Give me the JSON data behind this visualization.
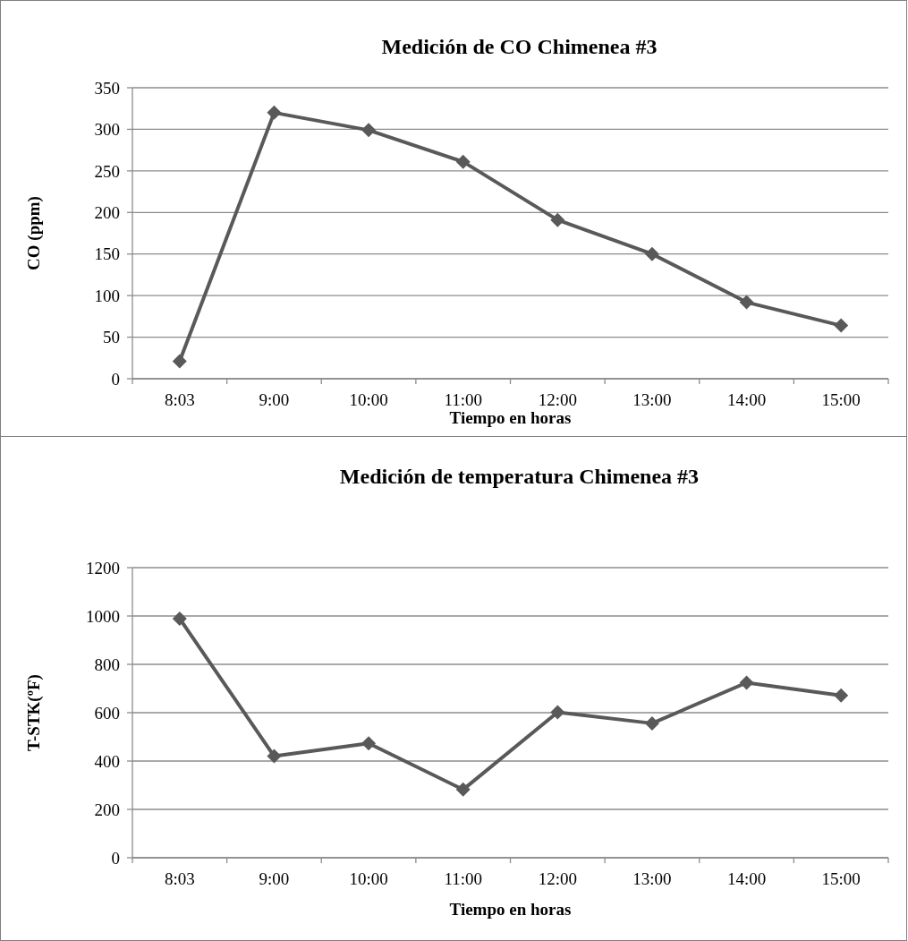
{
  "chart_data": [
    {
      "type": "line",
      "title": "Medición de CO Chimenea #3",
      "xlabel": "Tiempo en horas",
      "ylabel": "CO (ppm)",
      "categories": [
        "8:03",
        "9:00",
        "10:00",
        "11:00",
        "12:00",
        "13:00",
        "14:00",
        "15:00"
      ],
      "series": [
        {
          "color": "#595959",
          "values": [
            21,
            320,
            299,
            261,
            191,
            150,
            92,
            64
          ]
        }
      ],
      "ylim": [
        0,
        350
      ],
      "yticks": [
        0,
        50,
        100,
        150,
        200,
        250,
        300,
        350
      ],
      "grid": "y",
      "marker": "diamond",
      "line_style": "solid"
    },
    {
      "type": "line",
      "title": "Medición de temperatura Chimenea #3",
      "xlabel": "Tiempo en horas",
      "ylabel": "T-STK(ºF)",
      "categories": [
        "8:03",
        "9:00",
        "10:00",
        "11:00",
        "12:00",
        "13:00",
        "14:00",
        "15:00"
      ],
      "series": [
        {
          "color": "#595959",
          "values": [
            989,
            420,
            473,
            282,
            602,
            556,
            724,
            671
          ]
        }
      ],
      "ylim": [
        0,
        1200
      ],
      "yticks": [
        0,
        200,
        400,
        600,
        800,
        1000,
        1200
      ],
      "grid": "y",
      "marker": "diamond",
      "line_style": "solid"
    }
  ]
}
